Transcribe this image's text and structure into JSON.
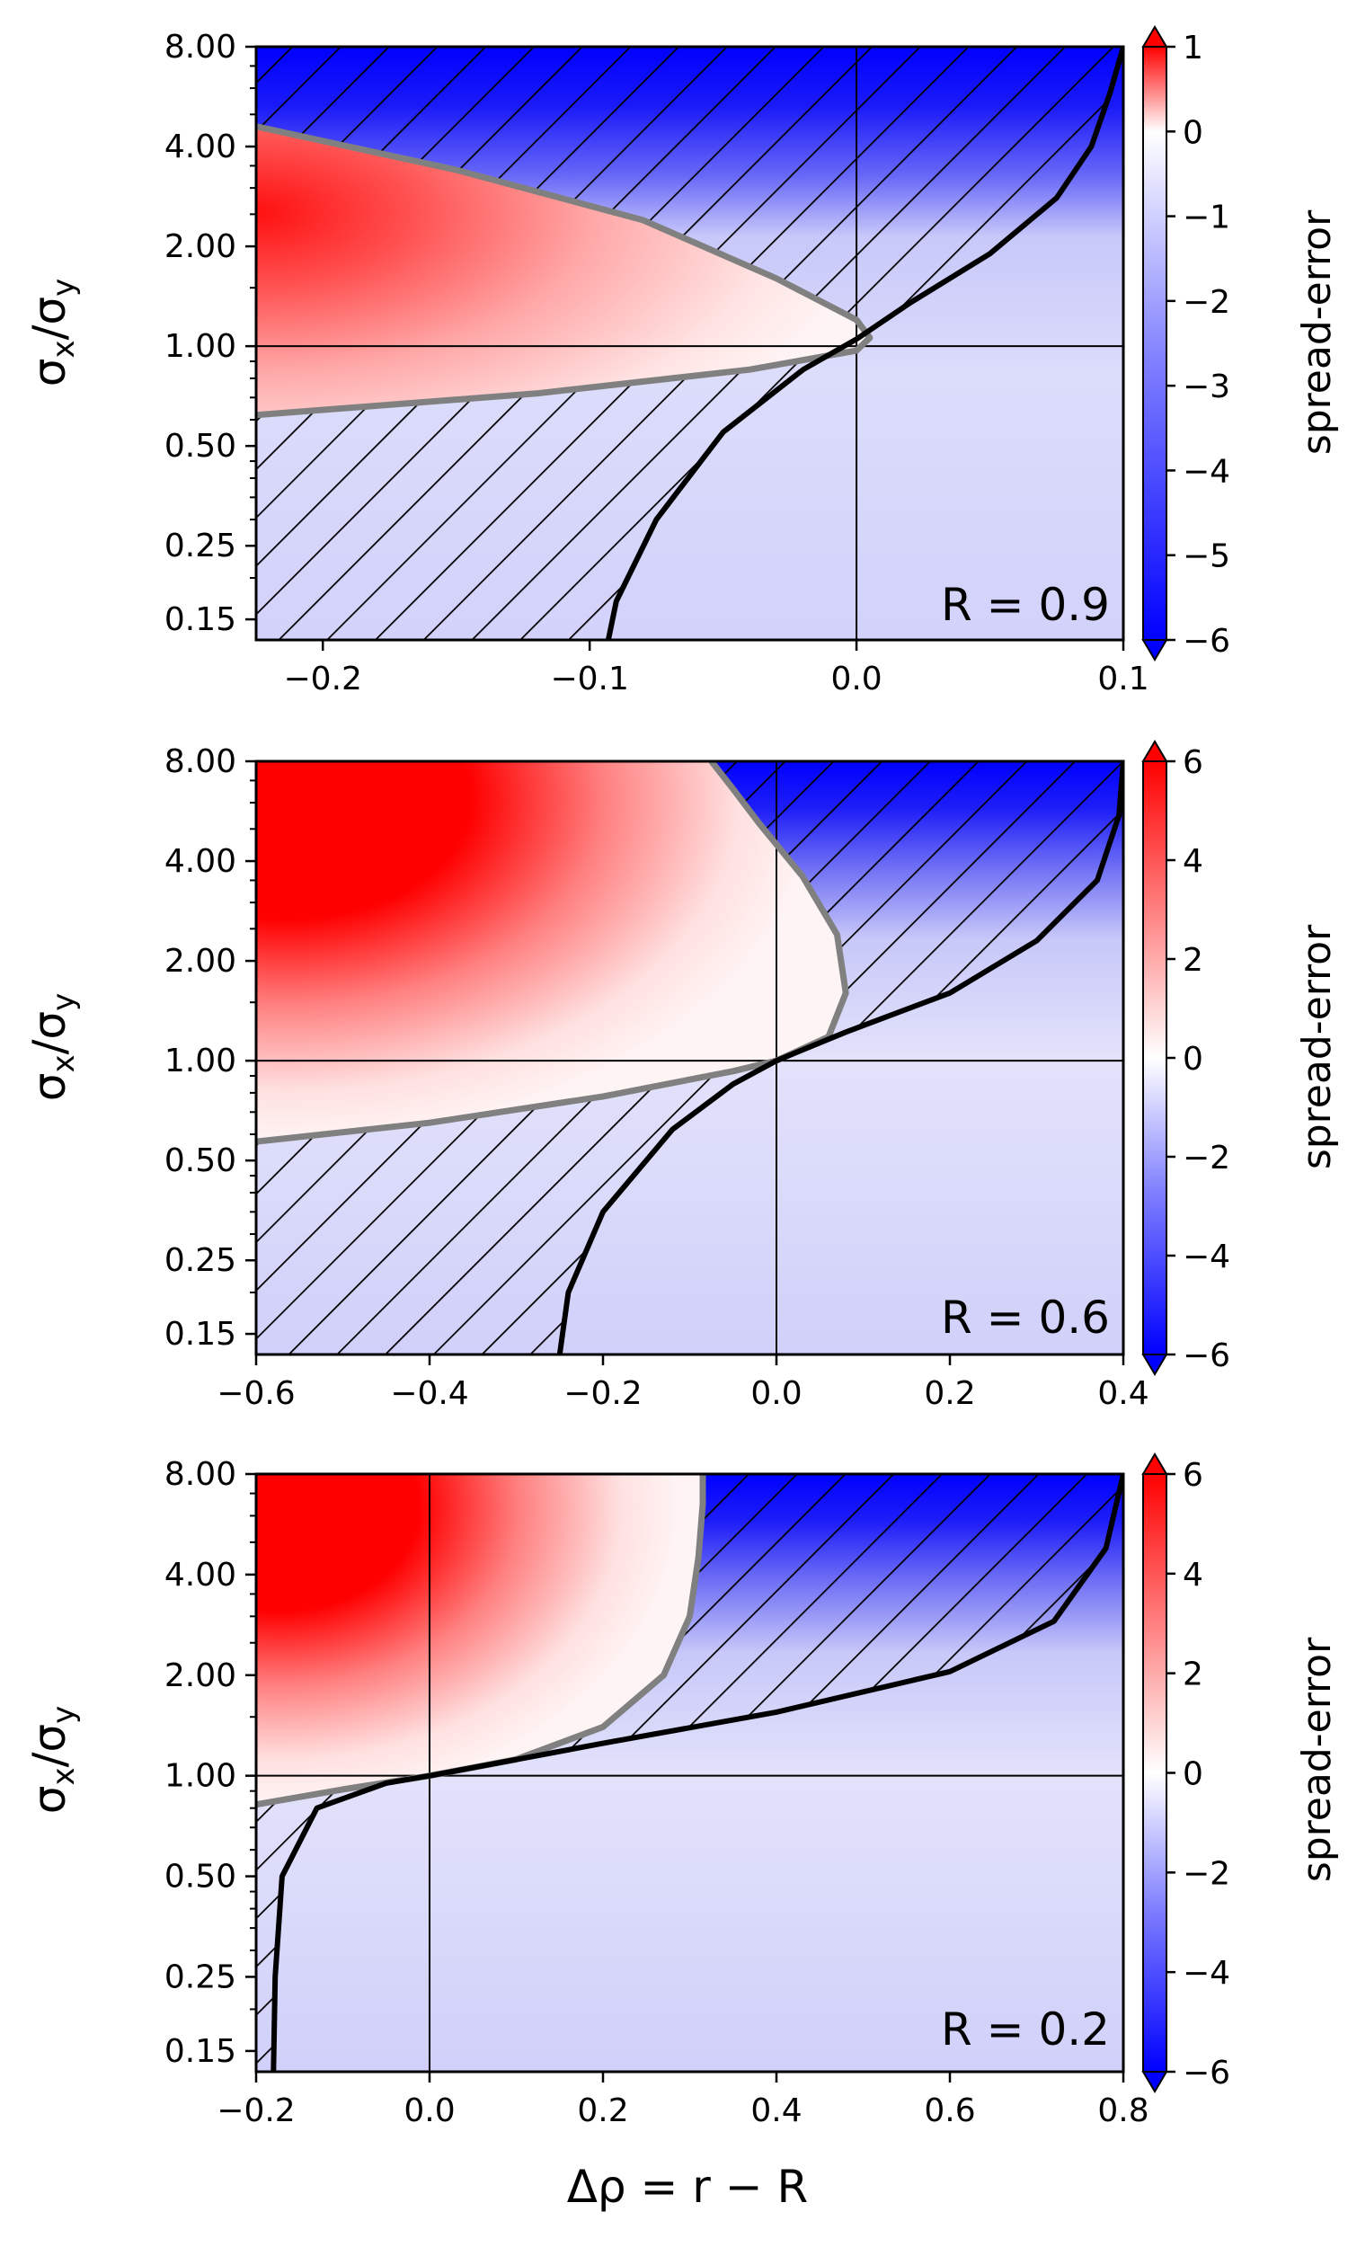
{
  "figure": {
    "ylabel": "σx/σy",
    "ylabel_main": "σ",
    "ylabel_sub1": "x",
    "ylabel_slash": "/σ",
    "ylabel_sub2": "y",
    "xlabel": "Δρ = r − R",
    "colorbar_label": "spread-error"
  },
  "colors": {
    "positive": "#ff0000",
    "zero": "#ffffff",
    "negative": "#0000ff",
    "boundary_gray": "#808080",
    "boundary_black": "#000000"
  },
  "chart_data": [
    {
      "type": "heatmap",
      "annotation": "R = 0.9",
      "xlim": [
        -0.225,
        0.1
      ],
      "x_ticks": [
        -0.2,
        -0.1,
        0.0,
        0.1
      ],
      "x_tick_labels": [
        "−0.2",
        "−0.1",
        "0.0",
        "0.1"
      ],
      "y_scale": "log2",
      "ylim": [
        0.13,
        8.0
      ],
      "y_ticks": [
        0.15,
        0.25,
        0.5,
        1.0,
        2.0,
        4.0,
        8.0
      ],
      "y_tick_labels": [
        "0.15",
        "0.25",
        "0.50",
        "1.00",
        "2.00",
        "4.00",
        "8.00"
      ],
      "reference_lines": {
        "x": 0.0,
        "y": 1.0
      },
      "colorbar": {
        "min": -6,
        "max": 1,
        "ticks": [
          1,
          0,
          -1,
          -2,
          -3,
          -4,
          -5,
          -6
        ],
        "tick_labels": [
          "1",
          "0",
          "−1",
          "−2",
          "−3",
          "−4",
          "−5",
          "−6"
        ]
      },
      "gray_boundary": {
        "x": [
          -0.225,
          -0.15,
          -0.08,
          -0.03,
          0.0,
          0.005,
          0.0,
          -0.04,
          -0.12,
          -0.225
        ],
        "y": [
          4.6,
          3.4,
          2.4,
          1.6,
          1.2,
          1.06,
          0.97,
          0.85,
          0.72,
          0.62
        ]
      },
      "black_boundary": {
        "x": [
          -0.093,
          -0.09,
          -0.075,
          -0.05,
          -0.02,
          0.0,
          0.02,
          0.05,
          0.075,
          0.088,
          0.095,
          0.1
        ],
        "y": [
          0.13,
          0.17,
          0.3,
          0.55,
          0.85,
          1.05,
          1.35,
          1.9,
          2.8,
          4.0,
          5.8,
          8.0
        ]
      }
    },
    {
      "type": "heatmap",
      "annotation": "R = 0.6",
      "xlim": [
        -0.6,
        0.4
      ],
      "x_ticks": [
        -0.6,
        -0.4,
        -0.2,
        0.0,
        0.2,
        0.4
      ],
      "x_tick_labels": [
        "−0.6",
        "−0.4",
        "−0.2",
        "0.0",
        "0.2",
        "0.4"
      ],
      "y_scale": "log2",
      "ylim": [
        0.13,
        8.0
      ],
      "y_ticks": [
        0.15,
        0.25,
        0.5,
        1.0,
        2.0,
        4.0,
        8.0
      ],
      "y_tick_labels": [
        "0.15",
        "0.25",
        "0.50",
        "1.00",
        "2.00",
        "4.00",
        "8.00"
      ],
      "reference_lines": {
        "x": 0.0,
        "y": 1.0
      },
      "colorbar": {
        "min": -6,
        "max": 6,
        "ticks": [
          6,
          4,
          2,
          0,
          -2,
          -4,
          -6
        ],
        "tick_labels": [
          "6",
          "4",
          "2",
          "0",
          "−2",
          "−4",
          "−6"
        ]
      },
      "gray_boundary": {
        "x": [
          -0.6,
          -0.4,
          -0.2,
          -0.05,
          0.0,
          0.06,
          0.08,
          0.07,
          0.03,
          -0.02,
          -0.05,
          -0.075
        ],
        "y": [
          0.57,
          0.65,
          0.78,
          0.93,
          1.0,
          1.18,
          1.6,
          2.4,
          3.6,
          5.2,
          6.6,
          8.0
        ]
      },
      "black_boundary": {
        "x": [
          -0.25,
          -0.24,
          -0.2,
          -0.12,
          -0.05,
          0.0,
          0.08,
          0.2,
          0.3,
          0.37,
          0.395,
          0.4
        ],
        "y": [
          0.13,
          0.2,
          0.35,
          0.62,
          0.85,
          1.0,
          1.22,
          1.6,
          2.3,
          3.5,
          5.5,
          8.0
        ]
      }
    },
    {
      "type": "heatmap",
      "annotation": "R = 0.2",
      "xlim": [
        -0.2,
        0.8
      ],
      "x_ticks": [
        -0.2,
        0.0,
        0.2,
        0.4,
        0.6,
        0.8
      ],
      "x_tick_labels": [
        "−0.2",
        "0.0",
        "0.2",
        "0.4",
        "0.6",
        "0.8"
      ],
      "y_scale": "log2",
      "ylim": [
        0.13,
        8.0
      ],
      "y_ticks": [
        0.15,
        0.25,
        0.5,
        1.0,
        2.0,
        4.0,
        8.0
      ],
      "y_tick_labels": [
        "0.15",
        "0.25",
        "0.50",
        "1.00",
        "2.00",
        "4.00",
        "8.00"
      ],
      "reference_lines": {
        "x": 0.0,
        "y": 1.0
      },
      "colorbar": {
        "min": -6,
        "max": 6,
        "ticks": [
          6,
          4,
          2,
          0,
          -2,
          -4,
          -6
        ],
        "tick_labels": [
          "6",
          "4",
          "2",
          "0",
          "−2",
          "−4",
          "−6"
        ]
      },
      "gray_boundary": {
        "x": [
          -0.2,
          -0.1,
          0.0,
          0.1,
          0.2,
          0.27,
          0.3,
          0.31,
          0.315,
          0.315
        ],
        "y": [
          0.82,
          0.91,
          1.0,
          1.12,
          1.4,
          2.0,
          3.0,
          4.5,
          6.5,
          8.0
        ]
      },
      "black_boundary": {
        "x": [
          -0.18,
          -0.178,
          -0.17,
          -0.13,
          -0.05,
          0.0,
          0.2,
          0.4,
          0.6,
          0.72,
          0.78,
          0.8
        ],
        "y": [
          0.13,
          0.25,
          0.5,
          0.8,
          0.95,
          1.0,
          1.25,
          1.55,
          2.05,
          2.9,
          4.8,
          8.0
        ]
      }
    }
  ]
}
